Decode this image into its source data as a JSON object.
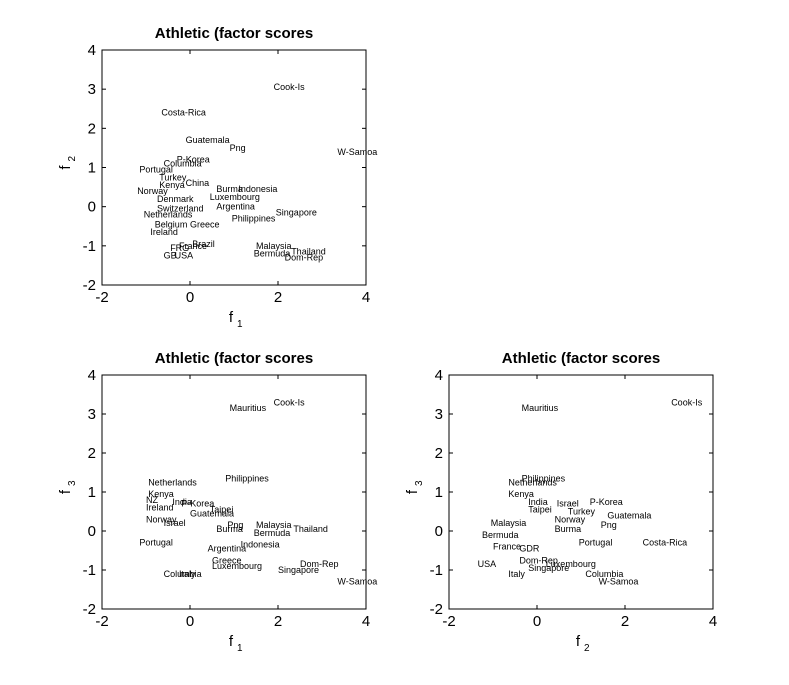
{
  "chart_data": [
    {
      "type": "scatter",
      "title": "Athletic (factor scores",
      "xlabel": "f",
      "xlabel_sub": "1",
      "ylabel": "f",
      "ylabel_sub": "2",
      "xlim": [
        -2,
        4
      ],
      "ylim": [
        -2,
        4
      ],
      "xticks": [
        "-2",
        "0",
        "2",
        "4"
      ],
      "yticks": [
        "-2",
        "-1",
        "0",
        "1",
        "2",
        "3",
        "4"
      ],
      "points": [
        {
          "label": "Cook-Is",
          "x": 1.9,
          "y": 3.05
        },
        {
          "label": "Costa-Rica",
          "x": -0.65,
          "y": 2.4
        },
        {
          "label": "Guatemala",
          "x": -0.1,
          "y": 1.7
        },
        {
          "label": "Png",
          "x": 0.9,
          "y": 1.5
        },
        {
          "label": "W-Samoa",
          "x": 3.35,
          "y": 1.4
        },
        {
          "label": "P-Korea",
          "x": -0.3,
          "y": 1.2
        },
        {
          "label": "Columbia",
          "x": -0.6,
          "y": 1.1
        },
        {
          "label": "Portugal",
          "x": -1.15,
          "y": 0.95
        },
        {
          "label": "Turkey",
          "x": -0.7,
          "y": 0.75
        },
        {
          "label": "China",
          "x": -0.1,
          "y": 0.6
        },
        {
          "label": "Kenya",
          "x": -0.7,
          "y": 0.55
        },
        {
          "label": "Burma",
          "x": 0.6,
          "y": 0.45
        },
        {
          "label": "Indonesia",
          "x": 1.1,
          "y": 0.45
        },
        {
          "label": "Norway",
          "x": -1.2,
          "y": 0.4
        },
        {
          "label": "Luxembourg",
          "x": 0.45,
          "y": 0.25
        },
        {
          "label": "Denmark",
          "x": -0.75,
          "y": 0.2
        },
        {
          "label": "Argentina",
          "x": 0.6,
          "y": 0.0
        },
        {
          "label": "Singapore",
          "x": 1.95,
          "y": -0.15
        },
        {
          "label": "Switzerland",
          "x": -0.75,
          "y": -0.05
        },
        {
          "label": "Netherlands",
          "x": -1.05,
          "y": -0.2
        },
        {
          "label": "Philippines",
          "x": 0.95,
          "y": -0.3
        },
        {
          "label": "Greece",
          "x": 0.0,
          "y": -0.45
        },
        {
          "label": "Belgium",
          "x": -0.8,
          "y": -0.45
        },
        {
          "label": "Ireland",
          "x": -0.9,
          "y": -0.65
        },
        {
          "label": "Brazil",
          "x": 0.05,
          "y": -0.95
        },
        {
          "label": "France",
          "x": -0.25,
          "y": -1.0
        },
        {
          "label": "FRG",
          "x": -0.45,
          "y": -1.05
        },
        {
          "label": "Malaysia",
          "x": 1.5,
          "y": -1.0
        },
        {
          "label": "Thailand",
          "x": 2.3,
          "y": -1.15
        },
        {
          "label": "Bermuda",
          "x": 1.45,
          "y": -1.2
        },
        {
          "label": "Dom-Rep",
          "x": 2.15,
          "y": -1.3
        },
        {
          "label": "GB",
          "x": -0.6,
          "y": -1.25
        },
        {
          "label": "USA",
          "x": -0.35,
          "y": -1.25
        }
      ]
    },
    {
      "type": "scatter",
      "title": "Athletic (factor scores",
      "xlabel": "f",
      "xlabel_sub": "1",
      "ylabel": "f",
      "ylabel_sub": "3",
      "xlim": [
        -2,
        4
      ],
      "ylim": [
        -2,
        4
      ],
      "xticks": [
        "-2",
        "0",
        "2",
        "4"
      ],
      "yticks": [
        "-2",
        "-1",
        "0",
        "1",
        "2",
        "3",
        "4"
      ],
      "points": [
        {
          "label": "Cook-Is",
          "x": 1.9,
          "y": 3.3
        },
        {
          "label": "Mauritius",
          "x": 0.9,
          "y": 3.15
        },
        {
          "label": "Philippines",
          "x": 0.8,
          "y": 1.35
        },
        {
          "label": "Netherlands",
          "x": -0.95,
          "y": 1.25
        },
        {
          "label": "Kenya",
          "x": -0.95,
          "y": 0.95
        },
        {
          "label": "NZ",
          "x": -1.0,
          "y": 0.8
        },
        {
          "label": "India",
          "x": -0.4,
          "y": 0.75
        },
        {
          "label": "P-Korea",
          "x": -0.2,
          "y": 0.7
        },
        {
          "label": "Ireland",
          "x": -1.0,
          "y": 0.6
        },
        {
          "label": "Taipei",
          "x": 0.45,
          "y": 0.55
        },
        {
          "label": "Guatemala",
          "x": 0.0,
          "y": 0.45
        },
        {
          "label": "Norway",
          "x": -1.0,
          "y": 0.3
        },
        {
          "label": "Israel",
          "x": -0.6,
          "y": 0.2
        },
        {
          "label": "Png",
          "x": 0.85,
          "y": 0.15
        },
        {
          "label": "Malaysia",
          "x": 1.5,
          "y": 0.15
        },
        {
          "label": "Burma",
          "x": 0.6,
          "y": 0.05
        },
        {
          "label": "Thailand",
          "x": 2.35,
          "y": 0.05
        },
        {
          "label": "Bermuda",
          "x": 1.45,
          "y": -0.05
        },
        {
          "label": "Portugal",
          "x": -1.15,
          "y": -0.3
        },
        {
          "label": "Indonesia",
          "x": 1.15,
          "y": -0.35
        },
        {
          "label": "Argentina",
          "x": 0.4,
          "y": -0.45
        },
        {
          "label": "Greece",
          "x": 0.5,
          "y": -0.75
        },
        {
          "label": "Dom-Rep",
          "x": 2.5,
          "y": -0.85
        },
        {
          "label": "Luxembourg",
          "x": 0.5,
          "y": -0.9
        },
        {
          "label": "Singapore",
          "x": 2.0,
          "y": -1.0
        },
        {
          "label": "Columbia",
          "x": -0.6,
          "y": -1.1
        },
        {
          "label": "Italy",
          "x": -0.25,
          "y": -1.1
        },
        {
          "label": "W-Samoa",
          "x": 3.35,
          "y": -1.3
        }
      ]
    },
    {
      "type": "scatter",
      "title": "Athletic (factor scores",
      "xlabel": "f",
      "xlabel_sub": "2",
      "ylabel": "f",
      "ylabel_sub": "3",
      "xlim": [
        -2,
        4
      ],
      "ylim": [
        -2,
        4
      ],
      "xticks": [
        "-2",
        "0",
        "2",
        "4"
      ],
      "yticks": [
        "-2",
        "-1",
        "0",
        "1",
        "2",
        "3",
        "4"
      ],
      "points": [
        {
          "label": "Cook-Is",
          "x": 3.05,
          "y": 3.3
        },
        {
          "label": "Mauritius",
          "x": -0.35,
          "y": 3.15
        },
        {
          "label": "Philippines",
          "x": -0.35,
          "y": 1.35
        },
        {
          "label": "Netherlands",
          "x": -0.65,
          "y": 1.25
        },
        {
          "label": "Kenya",
          "x": -0.65,
          "y": 0.95
        },
        {
          "label": "India",
          "x": -0.2,
          "y": 0.75
        },
        {
          "label": "Israel",
          "x": 0.45,
          "y": 0.7
        },
        {
          "label": "P-Korea",
          "x": 1.2,
          "y": 0.75
        },
        {
          "label": "Taipei",
          "x": -0.2,
          "y": 0.55
        },
        {
          "label": "Turkey",
          "x": 0.7,
          "y": 0.5
        },
        {
          "label": "Guatemala",
          "x": 1.6,
          "y": 0.4
        },
        {
          "label": "Norway",
          "x": 0.4,
          "y": 0.3
        },
        {
          "label": "Png",
          "x": 1.45,
          "y": 0.15
        },
        {
          "label": "Malaysia",
          "x": -1.05,
          "y": 0.2
        },
        {
          "label": "Burma",
          "x": 0.4,
          "y": 0.05
        },
        {
          "label": "Bermuda",
          "x": -1.25,
          "y": -0.1
        },
        {
          "label": "Portugal",
          "x": 0.95,
          "y": -0.3
        },
        {
          "label": "Costa-Rica",
          "x": 2.4,
          "y": -0.3
        },
        {
          "label": "France",
          "x": -1.0,
          "y": -0.4
        },
        {
          "label": "GDR",
          "x": -0.4,
          "y": -0.45
        },
        {
          "label": "Dom-Rep",
          "x": -0.4,
          "y": -0.75
        },
        {
          "label": "Luxembourg",
          "x": 0.2,
          "y": -0.85
        },
        {
          "label": "USA",
          "x": -1.35,
          "y": -0.85
        },
        {
          "label": "Singapore",
          "x": -0.2,
          "y": -0.95
        },
        {
          "label": "Columbia",
          "x": 1.1,
          "y": -1.1
        },
        {
          "label": "Italy",
          "x": -0.65,
          "y": -1.1
        },
        {
          "label": "W-Samoa",
          "x": 1.4,
          "y": -1.3
        }
      ]
    }
  ]
}
